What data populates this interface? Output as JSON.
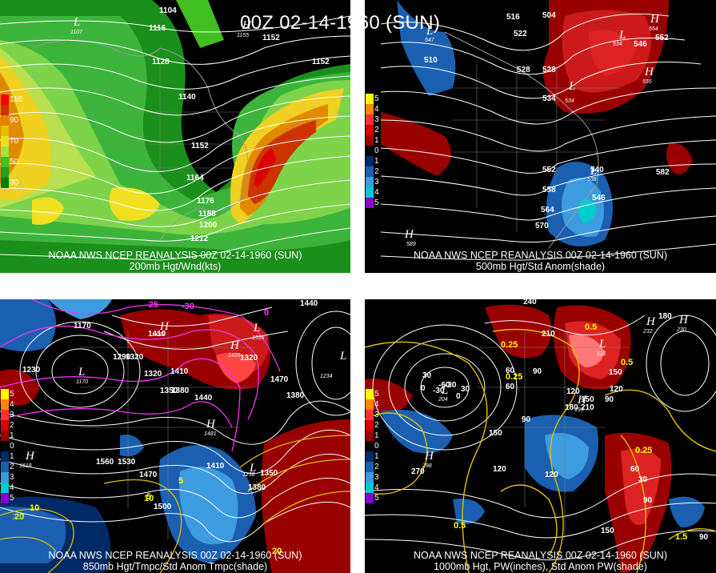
{
  "title": "00Z 02-14-1960 (SUN)",
  "panels": [
    {
      "id": "p1",
      "caption_line1": "NOAA NWS NCEP REANALYSIS 00Z 02-14-1960 (SUN)",
      "caption_line2": "200mb Hgt/Wnd(kts)",
      "legend": [
        {
          "label": "110",
          "color": "#ff0000"
        },
        {
          "label": "",
          "color": "#cc3300"
        },
        {
          "label": "90",
          "color": "#e08000"
        },
        {
          "label": "",
          "color": "#e0c000"
        },
        {
          "label": "70",
          "color": "#f0e020"
        },
        {
          "label": "",
          "color": "#a0e040"
        },
        {
          "label": "50",
          "color": "#40c020"
        },
        {
          "label": "",
          "color": "#20a020"
        },
        {
          "label": "30",
          "color": "#008000"
        }
      ],
      "contour_labels": [
        "1104",
        "1116",
        "1128",
        "1140",
        "1152",
        "1164",
        "1176",
        "1188",
        "1200",
        "1212",
        "1152",
        "1152",
        "1152"
      ],
      "lows": [
        {
          "text": "L",
          "value": "1107"
        }
      ],
      "highs": [
        {
          "text": "H",
          "value": "1155"
        }
      ]
    },
    {
      "id": "p2",
      "caption_line1": "NOAA NWS NCEP REANALYSIS 00Z 02-14-1960 (SUN)",
      "caption_line2": "500mb Hgt/Std Anom(shade)",
      "legend": [
        {
          "label": "5",
          "color": "#ffff00"
        },
        {
          "label": "4",
          "color": "#ff8800"
        },
        {
          "label": "3",
          "color": "#ff3333"
        },
        {
          "label": "2",
          "color": "#dd0000"
        },
        {
          "label": "1",
          "color": "#990000"
        },
        {
          "label": "0",
          "color": "#000000"
        },
        {
          "label": "1",
          "color": "#002a66"
        },
        {
          "label": "2",
          "color": "#1a5fb0"
        },
        {
          "label": "3",
          "color": "#3d9be0"
        },
        {
          "label": "4",
          "color": "#00cccc"
        },
        {
          "label": "5",
          "color": "#8800cc"
        }
      ],
      "contour_labels": [
        "504",
        "510",
        "516",
        "522",
        "528",
        "534",
        "546",
        "552",
        "558",
        "564",
        "570",
        "582",
        "528",
        "540",
        "546",
        "552"
      ],
      "lows": [
        {
          "text": "L",
          "value": "547"
        },
        {
          "text": "L",
          "value": "534"
        },
        {
          "text": "L",
          "value": "534"
        },
        {
          "text": "L",
          "value": "538"
        }
      ],
      "highs": [
        {
          "text": "H",
          "value": "554"
        },
        {
          "text": "H",
          "value": "555"
        },
        {
          "text": "H",
          "value": "589"
        }
      ]
    },
    {
      "id": "p3",
      "caption_line1": "NOAA NWS NCEP REANALYSIS 00Z 02-14-1960 (SUN)",
      "caption_line2": "850mb Hgt/Tmpc/Std Anom Tmpc(shade)",
      "legend": [
        {
          "label": "5",
          "color": "#ffff00"
        },
        {
          "label": "4",
          "color": "#ff8800"
        },
        {
          "label": "3",
          "color": "#ff3333"
        },
        {
          "label": "2",
          "color": "#dd0000"
        },
        {
          "label": "1",
          "color": "#990000"
        },
        {
          "label": "0",
          "color": "#000000"
        },
        {
          "label": "1",
          "color": "#002a66"
        },
        {
          "label": "2",
          "color": "#1a5fb0"
        },
        {
          "label": "3",
          "color": "#3d9be0"
        },
        {
          "label": "4",
          "color": "#00cccc"
        },
        {
          "label": "5",
          "color": "#8800cc"
        }
      ],
      "contour_labels": [
        "1170",
        "1230",
        "1290",
        "1320",
        "1410",
        "1320",
        "1350",
        "1380",
        "1410",
        "1440",
        "1470",
        "1440",
        "1380",
        "1560",
        "1530",
        "1470",
        "1500",
        "1410",
        "1380",
        "1350",
        "1320"
      ],
      "temp_labels": [
        "-25",
        "-30",
        "0",
        "5",
        "10",
        "5",
        "20",
        "20",
        "10"
      ],
      "lows": [
        {
          "text": "L",
          "value": "1170"
        },
        {
          "text": "L",
          "value": "1536"
        },
        {
          "text": "L",
          "value": "1234"
        },
        {
          "text": "L",
          "value": "1238"
        }
      ],
      "highs": [
        {
          "text": "H",
          "value": "1495"
        },
        {
          "text": "H",
          "value": "1435"
        },
        {
          "text": "H",
          "value": "1618"
        },
        {
          "text": "H",
          "value": "1481"
        }
      ]
    },
    {
      "id": "p4",
      "caption_line1": "NOAA NWS NCEP REANALYSIS 00Z 02-14-1960 (SUN)",
      "caption_line2": "1000mb Hgt, PW(inches), Std Anom PW(shade)",
      "legend": [
        {
          "label": "5",
          "color": "#ffff00"
        },
        {
          "label": "4",
          "color": "#ff8800"
        },
        {
          "label": "3",
          "color": "#ff3333"
        },
        {
          "label": "2",
          "color": "#dd0000"
        },
        {
          "label": "1",
          "color": "#990000"
        },
        {
          "label": "0",
          "color": "#000000"
        },
        {
          "label": "1",
          "color": "#002a66"
        },
        {
          "label": "2",
          "color": "#1a5fb0"
        },
        {
          "label": "3",
          "color": "#3d9be0"
        },
        {
          "label": "4",
          "color": "#00cccc"
        },
        {
          "label": "5",
          "color": "#8800cc"
        }
      ],
      "contour_labels": [
        "240",
        "210",
        "90",
        "180",
        "150",
        "120",
        "90",
        "60",
        "30",
        "0",
        "-30",
        "-60",
        "-30",
        "0",
        "30",
        "60",
        "90",
        "120",
        "150",
        "180",
        "210",
        "270",
        "150",
        "120",
        "90",
        "60",
        "30",
        "90",
        "150",
        "120",
        "90"
      ],
      "pw_labels": [
        "0.25",
        "0.5",
        "0.25",
        "0.5",
        "0.5",
        "0.25",
        "1.5"
      ],
      "lows": [
        {
          "text": "L",
          "value": "204"
        },
        {
          "text": "L",
          "value": "121"
        }
      ],
      "highs": [
        {
          "text": "H",
          "value": "232"
        },
        {
          "text": "H",
          "value": "230"
        },
        {
          "text": "H",
          "value": "298"
        },
        {
          "text": "H",
          "value": "193"
        }
      ]
    }
  ]
}
